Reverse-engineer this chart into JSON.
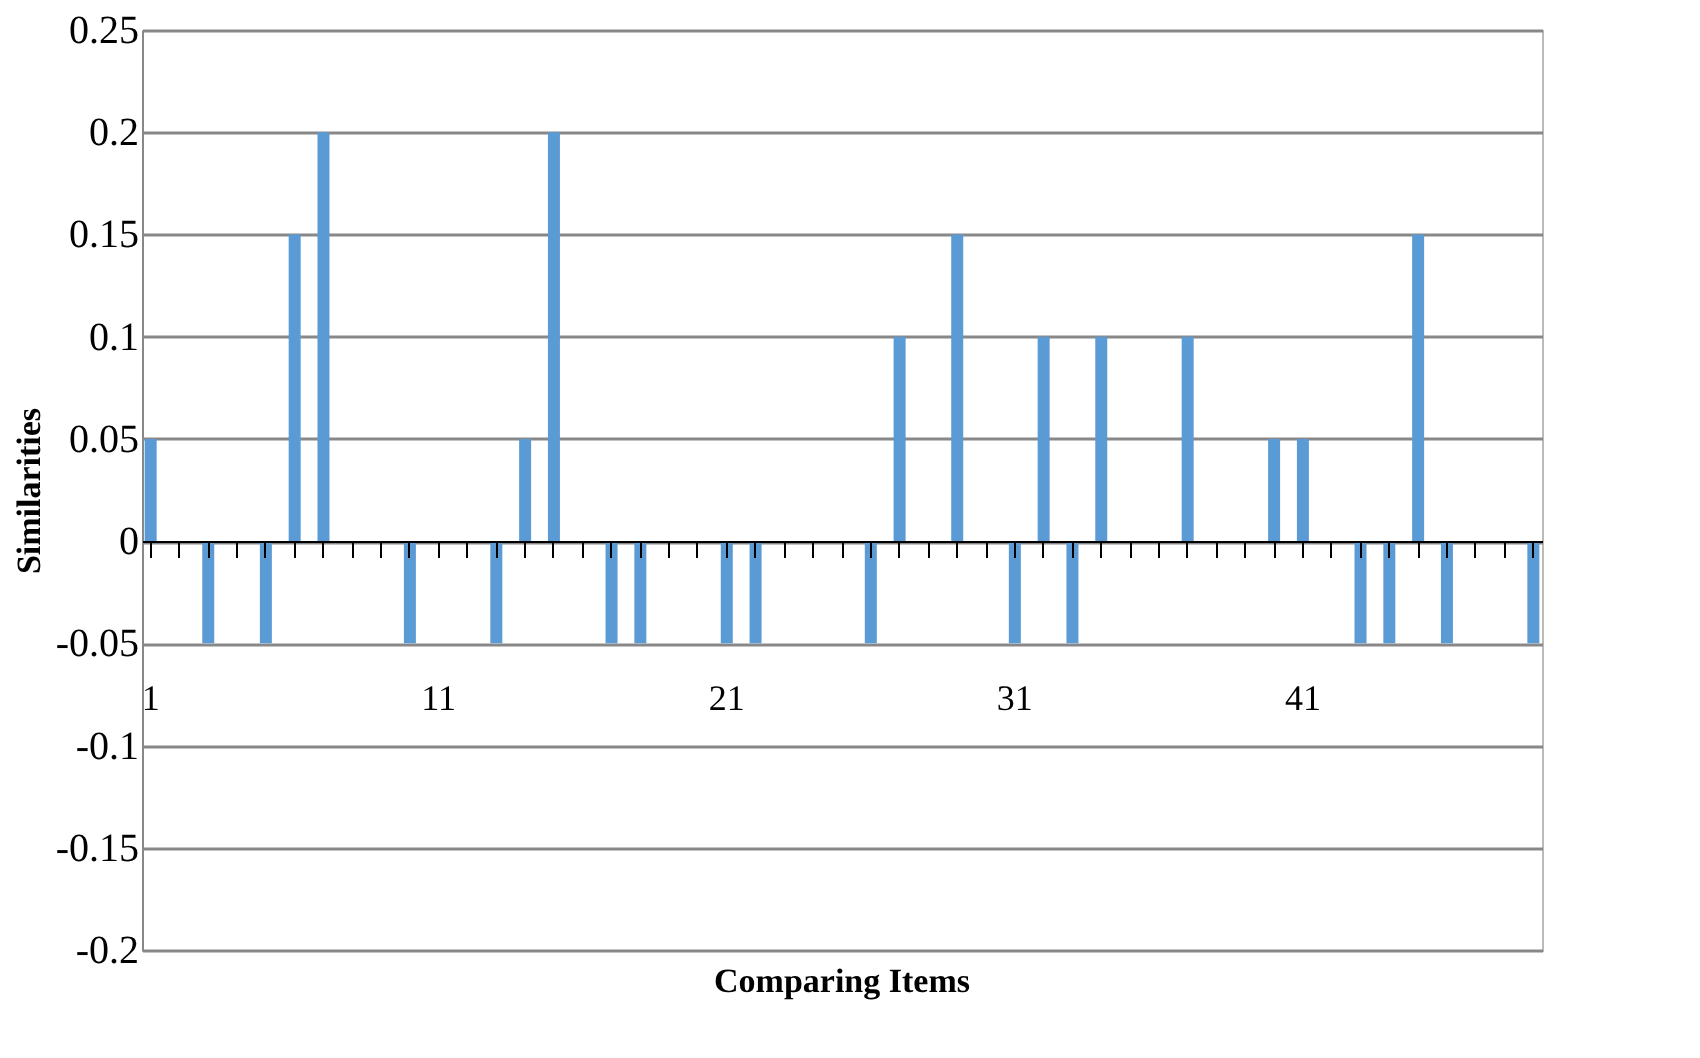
{
  "chart_data": {
    "type": "bar",
    "xlabel": "Comparing Items",
    "ylabel": "Similarities",
    "categories": [
      "1",
      null,
      null,
      null,
      null,
      null,
      null,
      null,
      null,
      null,
      "11",
      null,
      null,
      null,
      null,
      null,
      null,
      null,
      null,
      null,
      "21",
      null,
      null,
      null,
      null,
      null,
      null,
      null,
      null,
      null,
      "31",
      null,
      null,
      null,
      null,
      null,
      null,
      null,
      null,
      null,
      "41",
      null,
      null,
      null,
      null,
      null,
      null,
      null,
      null
    ],
    "values": [
      0.05,
      0,
      -0.05,
      0,
      -0.05,
      0.15,
      0.2,
      0,
      0,
      -0.05,
      0,
      0,
      -0.05,
      0.05,
      0.2,
      0,
      -0.05,
      -0.05,
      0,
      0,
      -0.05,
      -0.05,
      0,
      0,
      0,
      -0.05,
      0.1,
      0,
      0.15,
      0,
      -0.05,
      0.1,
      -0.05,
      0.1,
      0,
      0,
      0.1,
      0,
      0,
      0.05,
      0.05,
      0,
      -0.05,
      -0.05,
      0.15,
      -0.05,
      0,
      0,
      -0.05
    ],
    "color": "#5b9bd5",
    "ylim": [
      -0.2,
      0.25
    ],
    "yticks": [
      -0.2,
      -0.15,
      -0.1,
      -0.05,
      0,
      0.05,
      0.1,
      0.15,
      0.2,
      0.25
    ],
    "grid": "y"
  }
}
